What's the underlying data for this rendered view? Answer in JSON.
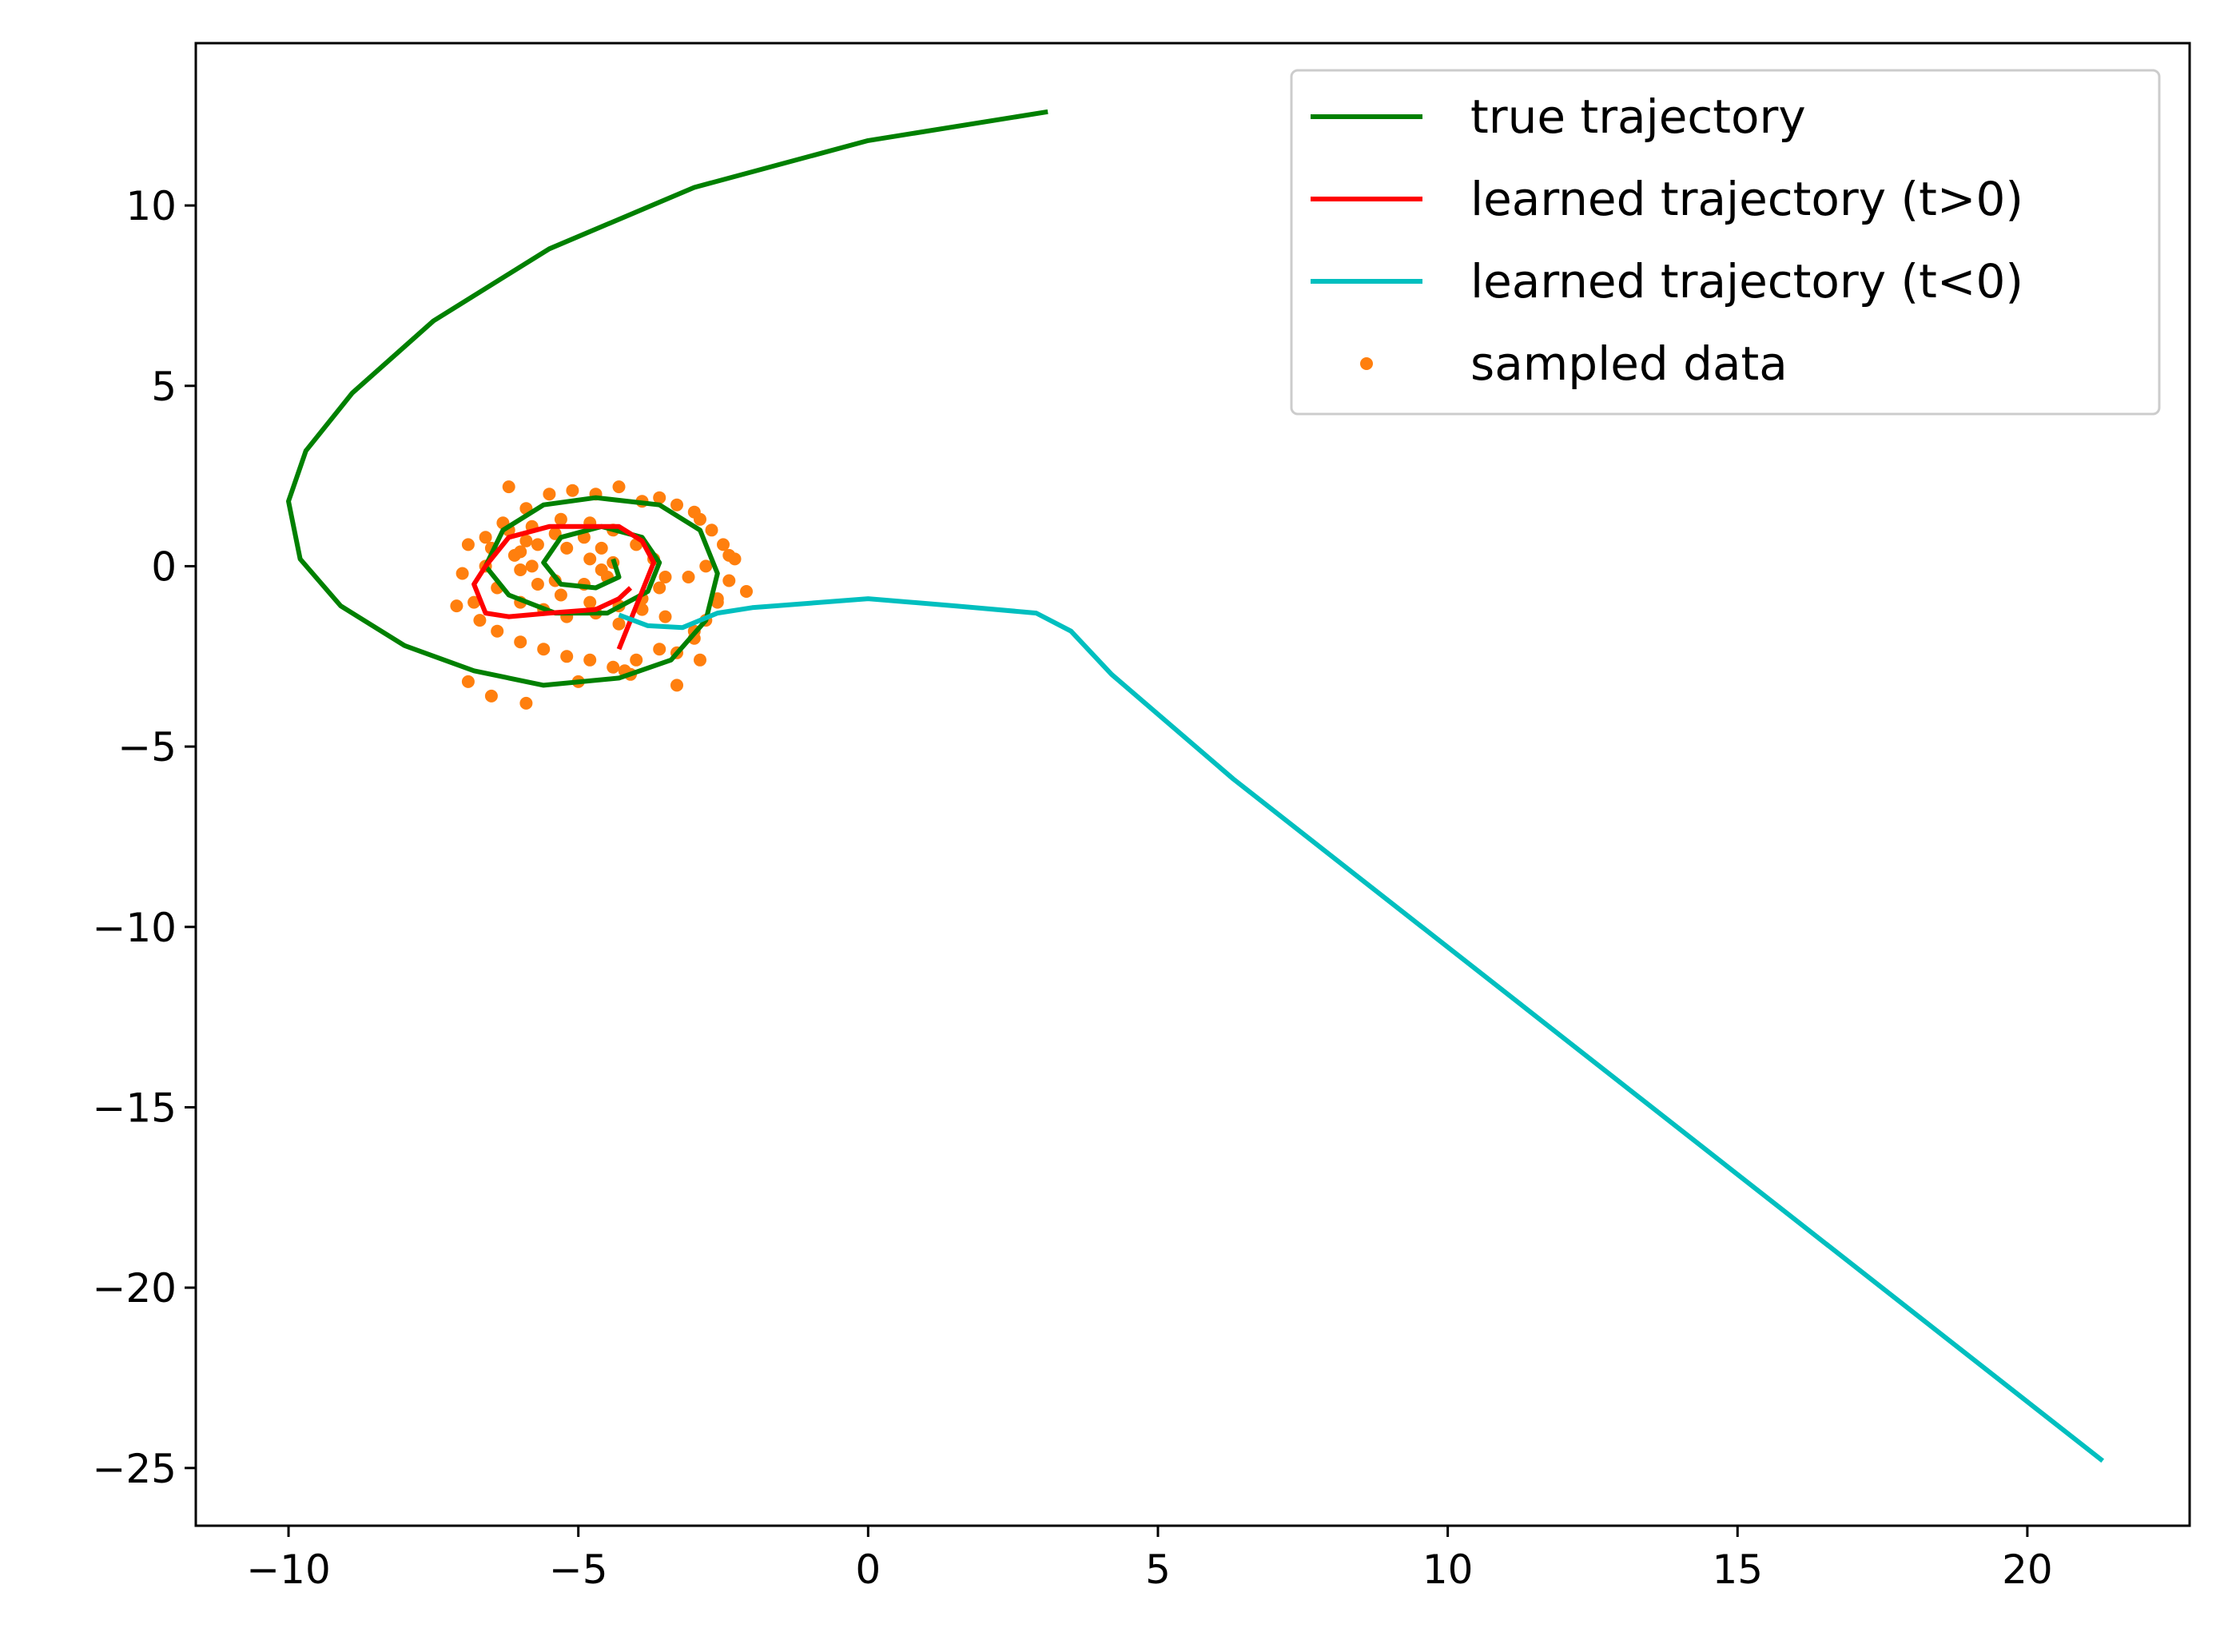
{
  "chart_data": {
    "type": "line",
    "title": "",
    "xlabel": "",
    "ylabel": "",
    "xlim": [
      -11.6,
      22.8
    ],
    "ylim": [
      -26.6,
      14.5
    ],
    "x_ticks": [
      -10,
      -5,
      0,
      5,
      10,
      15,
      20
    ],
    "y_ticks": [
      10,
      5,
      0,
      -5,
      -10,
      -15,
      -20,
      -25
    ],
    "x_tick_labels": [
      "−10",
      "−5",
      "0",
      "5",
      "10",
      "15",
      "20"
    ],
    "y_tick_labels": [
      "10",
      "5",
      "0",
      "−5",
      "−10",
      "−15",
      "−20",
      "−25"
    ],
    "grid": false,
    "legend_position": "top-right",
    "legend": [
      {
        "label": "true trajectory",
        "color": "#008000",
        "marker": "line"
      },
      {
        "label": "learned trajectory (t>0)",
        "color": "#ff0000",
        "marker": "line"
      },
      {
        "label": "learned trajectory (t<0)",
        "color": "#00bfbf",
        "marker": "line"
      },
      {
        "label": "sampled data",
        "color": "#ff7f0e",
        "marker": "dot"
      }
    ],
    "series": [
      {
        "name": "true trajectory",
        "kind": "line",
        "color": "#008000",
        "x": [
          3.1,
          0.0,
          -3.0,
          -5.5,
          -7.5,
          -8.9,
          -9.7,
          -10.0,
          -9.8,
          -9.1,
          -8.0,
          -6.8,
          -5.6,
          -4.3,
          -3.4,
          -2.8,
          -2.6,
          -2.9,
          -3.6,
          -4.7,
          -5.6,
          -6.3,
          -6.6,
          -6.2,
          -5.4,
          -4.5,
          -3.8,
          -3.6,
          -3.9,
          -4.6,
          -5.3,
          -5.6,
          -5.3,
          -4.7,
          -4.3,
          -4.4
        ],
        "y": [
          12.6,
          11.8,
          10.5,
          8.8,
          6.8,
          4.8,
          3.2,
          1.8,
          0.2,
          -1.1,
          -2.2,
          -2.9,
          -3.3,
          -3.1,
          -2.6,
          -1.5,
          -0.2,
          1.0,
          1.7,
          1.9,
          1.7,
          1.0,
          0.0,
          -0.8,
          -1.3,
          -1.3,
          -0.7,
          0.1,
          0.8,
          1.1,
          0.8,
          0.1,
          -0.5,
          -0.6,
          -0.3,
          0.2
        ]
      },
      {
        "name": "learned trajectory (t>0)",
        "kind": "line",
        "color": "#ff0000",
        "x": [
          -4.3,
          -3.7,
          -3.9,
          -4.3,
          -4.8,
          -5.5,
          -6.2,
          -6.6,
          -6.8,
          -6.6,
          -6.2,
          -5.5,
          -4.7,
          -4.3,
          -4.1
        ],
        "y": [
          -2.3,
          0.1,
          0.7,
          1.1,
          1.1,
          1.1,
          0.8,
          0.0,
          -0.5,
          -1.3,
          -1.4,
          -1.3,
          -1.2,
          -0.9,
          -0.6
        ]
      },
      {
        "name": "learned trajectory (t<0)",
        "kind": "line",
        "color": "#00bfbf",
        "x": [
          -4.3,
          -3.8,
          -3.2,
          -2.6,
          -2.0,
          0.0,
          1.5,
          2.9,
          3.5,
          4.2,
          6.3,
          21.3
        ],
        "y": [
          -1.35,
          -1.65,
          -1.7,
          -1.3,
          -1.15,
          -0.9,
          -1.1,
          -1.3,
          -1.8,
          -3.0,
          -5.9,
          -24.8
        ]
      },
      {
        "name": "sampled data",
        "kind": "scatter",
        "color": "#ff7f0e",
        "x": [
          -2.1,
          -2.3,
          -2.5,
          -2.4,
          -2.7,
          -2.6,
          -2.9,
          -3.0,
          -3.3,
          -3.6,
          -3.9,
          -4.3,
          -4.7,
          -5.1,
          -5.5,
          -5.9,
          -6.3,
          -6.6,
          -6.9,
          -7.0,
          -6.8,
          -7.1,
          -6.7,
          -6.4,
          -6.0,
          -5.6,
          -5.2,
          -4.8,
          -4.4,
          -4.0,
          -3.6,
          -3.3,
          -3.0,
          -2.8,
          -2.6,
          -2.8,
          -3.1,
          -3.5,
          -3.9,
          -4.3,
          -4.7,
          -5.2,
          -5.6,
          -6.0,
          -6.4,
          -6.6,
          -6.5,
          -6.2,
          -5.8,
          -5.3,
          -4.8,
          -4.4,
          -4.0,
          -3.7,
          -3.5,
          -3.6,
          -3.9,
          -4.3,
          -4.8,
          -5.3,
          -5.7,
          -6.0,
          -6.1,
          -5.9,
          -5.4,
          -4.9,
          -4.6,
          -4.4,
          -4.5,
          -4.9,
          -5.4,
          -5.8,
          -6.0,
          -5.7,
          -5.2,
          -4.8,
          -4.6,
          -3.3,
          -2.4,
          -2.9,
          -6.9,
          -6.5,
          -5.0,
          -4.1,
          -3.0,
          -6.2,
          -5.9,
          -4.2
        ],
        "y": [
          -0.7,
          0.2,
          0.6,
          -0.4,
          1.0,
          -1.0,
          1.3,
          -1.8,
          1.7,
          1.9,
          1.8,
          2.2,
          2.0,
          2.1,
          2.0,
          1.6,
          1.2,
          0.8,
          0.6,
          -0.2,
          -1.0,
          -1.1,
          -1.5,
          -1.8,
          -2.1,
          -2.3,
          -2.5,
          -2.6,
          -2.8,
          -2.6,
          -2.3,
          -2.4,
          -2.0,
          -1.5,
          -0.9,
          0.0,
          -0.3,
          -1.4,
          -1.2,
          -1.6,
          -1.3,
          -1.4,
          -1.2,
          -1.0,
          -0.6,
          0.0,
          0.5,
          1.0,
          1.1,
          1.3,
          1.2,
          1.0,
          0.6,
          0.2,
          -0.3,
          -0.6,
          -0.9,
          -1.1,
          -1.0,
          -0.8,
          -0.5,
          -0.1,
          0.3,
          0.7,
          0.9,
          0.8,
          0.5,
          0.1,
          -0.3,
          -0.5,
          -0.4,
          0.0,
          0.4,
          0.6,
          0.5,
          0.2,
          -0.1,
          -3.3,
          0.3,
          -2.6,
          -3.2,
          -3.6,
          -3.2,
          -3.0,
          1.5,
          2.2,
          -3.8,
          -2.9
        ]
      }
    ]
  }
}
